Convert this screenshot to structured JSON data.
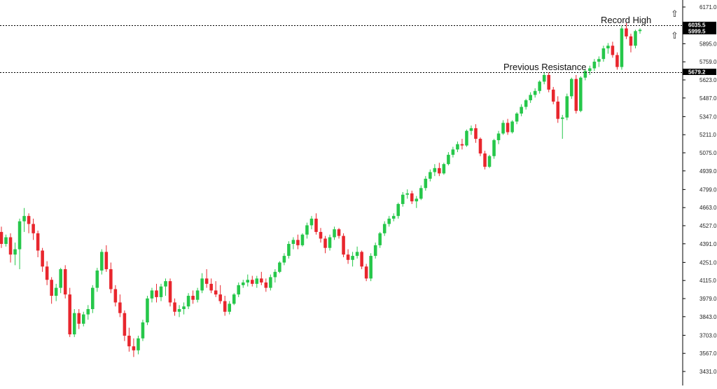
{
  "colors": {
    "bull": "#26c74a",
    "bear": "#e8262d",
    "wick_bull": "#26c74a",
    "wick_bear": "#e8262d",
    "grid_line": "#000000",
    "axis_line": "#000000",
    "tag_bg": "#000000"
  },
  "annotations": {
    "record_high": "Record High",
    "previous_resistance": "Previous Resistance",
    "arrow_up_1": "⇧",
    "arrow_up_2": "⇧"
  },
  "price_tags": {
    "record_high_level": "6035.5",
    "current_price": "5999.5",
    "resistance_level": "5679.2"
  },
  "chart_data": {
    "type": "candlestick",
    "title": "",
    "xlabel": "",
    "ylabel": "",
    "ylim": [
      3431.0,
      6171.0
    ],
    "y_ticks": [
      "6171.0",
      "6035.5",
      "5895.0",
      "5759.0",
      "5623.0",
      "5487.0",
      "5347.0",
      "5211.0",
      "5075.0",
      "4939.0",
      "4799.0",
      "4663.0",
      "4527.0",
      "4391.0",
      "4251.0",
      "4115.0",
      "3979.0",
      "3843.0",
      "3703.0",
      "3567.0",
      "3431.0"
    ],
    "y_tick_values": [
      6171.0,
      6035.5,
      5895.0,
      5759.0,
      5623.0,
      5487.0,
      5347.0,
      5211.0,
      5075.0,
      4939.0,
      4799.0,
      4663.0,
      4527.0,
      4391.0,
      4251.0,
      4115.0,
      3979.0,
      3843.0,
      3703.0,
      3567.0,
      3431.0
    ],
    "horizontal_lines": [
      {
        "name": "Record High",
        "value": 6035.5,
        "style": "dotted"
      },
      {
        "name": "Previous Resistance",
        "value": 5679.2,
        "style": "dotted"
      }
    ],
    "grid": false,
    "candles": [
      [
        4480,
        4520,
        4360,
        4390
      ],
      [
        4390,
        4460,
        4370,
        4440
      ],
      [
        4440,
        4470,
        4250,
        4310
      ],
      [
        4310,
        4400,
        4230,
        4350
      ],
      [
        4350,
        4580,
        4200,
        4560
      ],
      [
        4560,
        4660,
        4480,
        4600
      ],
      [
        4600,
        4620,
        4470,
        4540
      ],
      [
        4540,
        4580,
        4420,
        4470
      ],
      [
        4470,
        4490,
        4290,
        4340
      ],
      [
        4340,
        4360,
        4180,
        4220
      ],
      [
        4220,
        4260,
        4080,
        4120
      ],
      [
        4120,
        4140,
        3940,
        4000
      ],
      [
        4000,
        4090,
        3960,
        4060
      ],
      [
        4060,
        4210,
        4020,
        4200
      ],
      [
        4200,
        4230,
        3980,
        4010
      ],
      [
        4010,
        4060,
        3690,
        3710
      ],
      [
        3710,
        3900,
        3690,
        3870
      ],
      [
        3870,
        3900,
        3750,
        3790
      ],
      [
        3790,
        3880,
        3770,
        3860
      ],
      [
        3860,
        3930,
        3820,
        3900
      ],
      [
        3900,
        4080,
        3870,
        4060
      ],
      [
        4060,
        4210,
        4030,
        4190
      ],
      [
        4190,
        4350,
        4160,
        4330
      ],
      [
        4330,
        4380,
        4180,
        4200
      ],
      [
        4200,
        4250,
        4020,
        4050
      ],
      [
        4050,
        4080,
        3920,
        3950
      ],
      [
        3950,
        4010,
        3840,
        3870
      ],
      [
        3870,
        3890,
        3660,
        3700
      ],
      [
        3700,
        3760,
        3580,
        3620
      ],
      [
        3620,
        3680,
        3540,
        3590
      ],
      [
        3590,
        3700,
        3560,
        3680
      ],
      [
        3680,
        3820,
        3660,
        3800
      ],
      [
        3800,
        4000,
        3780,
        3980
      ],
      [
        3980,
        4060,
        3950,
        4040
      ],
      [
        4040,
        4090,
        3950,
        3990
      ],
      [
        3990,
        4090,
        3960,
        4070
      ],
      [
        4070,
        4130,
        4000,
        4110
      ],
      [
        4110,
        4130,
        3920,
        3950
      ],
      [
        3950,
        3980,
        3850,
        3880
      ],
      [
        3880,
        3930,
        3840,
        3900
      ],
      [
        3900,
        3950,
        3860,
        3920
      ],
      [
        3920,
        4020,
        3900,
        4000
      ],
      [
        4000,
        4040,
        3940,
        3970
      ],
      [
        3970,
        4060,
        3950,
        4040
      ],
      [
        4040,
        4170,
        4020,
        4130
      ],
      [
        4130,
        4200,
        4060,
        4090
      ],
      [
        4090,
        4130,
        4020,
        4040
      ],
      [
        4040,
        4110,
        3990,
        4010
      ],
      [
        4010,
        4080,
        3940,
        3960
      ],
      [
        3960,
        4000,
        3850,
        3880
      ],
      [
        3880,
        3960,
        3860,
        3940
      ],
      [
        3940,
        4020,
        3930,
        4010
      ],
      [
        4010,
        4100,
        3990,
        4080
      ],
      [
        4080,
        4120,
        4060,
        4100
      ],
      [
        4100,
        4160,
        4070,
        4120
      ],
      [
        4120,
        4150,
        4070,
        4090
      ],
      [
        4090,
        4150,
        4060,
        4130
      ],
      [
        4130,
        4180,
        4080,
        4100
      ],
      [
        4100,
        4130,
        4030,
        4060
      ],
      [
        4060,
        4160,
        4040,
        4140
      ],
      [
        4140,
        4200,
        4100,
        4180
      ],
      [
        4180,
        4260,
        4170,
        4250
      ],
      [
        4250,
        4320,
        4230,
        4300
      ],
      [
        4300,
        4410,
        4280,
        4390
      ],
      [
        4390,
        4440,
        4350,
        4420
      ],
      [
        4420,
        4460,
        4350,
        4380
      ],
      [
        4380,
        4470,
        4370,
        4460
      ],
      [
        4460,
        4550,
        4430,
        4530
      ],
      [
        4530,
        4600,
        4500,
        4580
      ],
      [
        4580,
        4620,
        4460,
        4480
      ],
      [
        4480,
        4510,
        4400,
        4430
      ],
      [
        4430,
        4450,
        4320,
        4360
      ],
      [
        4360,
        4460,
        4340,
        4440
      ],
      [
        4440,
        4520,
        4420,
        4500
      ],
      [
        4500,
        4510,
        4430,
        4450
      ],
      [
        4450,
        4470,
        4290,
        4310
      ],
      [
        4310,
        4350,
        4240,
        4270
      ],
      [
        4270,
        4330,
        4220,
        4300
      ],
      [
        4300,
        4370,
        4280,
        4330
      ],
      [
        4330,
        4340,
        4200,
        4220
      ],
      [
        4220,
        4240,
        4110,
        4130
      ],
      [
        4130,
        4320,
        4110,
        4300
      ],
      [
        4300,
        4400,
        4280,
        4380
      ],
      [
        4380,
        4480,
        4360,
        4470
      ],
      [
        4470,
        4560,
        4450,
        4540
      ],
      [
        4540,
        4600,
        4520,
        4580
      ],
      [
        4580,
        4620,
        4560,
        4600
      ],
      [
        4600,
        4700,
        4580,
        4690
      ],
      [
        4690,
        4780,
        4670,
        4760
      ],
      [
        4760,
        4800,
        4730,
        4770
      ],
      [
        4770,
        4790,
        4690,
        4710
      ],
      [
        4710,
        4750,
        4660,
        4730
      ],
      [
        4730,
        4830,
        4720,
        4810
      ],
      [
        4810,
        4900,
        4790,
        4880
      ],
      [
        4880,
        4950,
        4860,
        4930
      ],
      [
        4930,
        4990,
        4900,
        4960
      ],
      [
        4960,
        5000,
        4900,
        4920
      ],
      [
        4920,
        5000,
        4910,
        4990
      ],
      [
        4990,
        5080,
        4980,
        5060
      ],
      [
        5060,
        5120,
        5040,
        5100
      ],
      [
        5100,
        5160,
        5080,
        5140
      ],
      [
        5140,
        5180,
        5100,
        5130
      ],
      [
        5130,
        5250,
        5120,
        5240
      ],
      [
        5240,
        5280,
        5210,
        5260
      ],
      [
        5260,
        5290,
        5150,
        5180
      ],
      [
        5180,
        5190,
        5050,
        5070
      ],
      [
        5070,
        5090,
        4950,
        4970
      ],
      [
        4970,
        5060,
        4960,
        5050
      ],
      [
        5050,
        5180,
        5030,
        5170
      ],
      [
        5170,
        5240,
        5140,
        5220
      ],
      [
        5220,
        5320,
        5210,
        5300
      ],
      [
        5300,
        5330,
        5210,
        5230
      ],
      [
        5230,
        5320,
        5220,
        5310
      ],
      [
        5310,
        5380,
        5290,
        5370
      ],
      [
        5370,
        5440,
        5350,
        5420
      ],
      [
        5420,
        5480,
        5400,
        5470
      ],
      [
        5470,
        5530,
        5450,
        5510
      ],
      [
        5510,
        5560,
        5490,
        5540
      ],
      [
        5540,
        5620,
        5520,
        5610
      ],
      [
        5610,
        5680,
        5590,
        5660
      ],
      [
        5660,
        5680,
        5530,
        5550
      ],
      [
        5550,
        5570,
        5440,
        5460
      ],
      [
        5460,
        5500,
        5300,
        5330
      ],
      [
        5330,
        5360,
        5180,
        5340
      ],
      [
        5340,
        5520,
        5320,
        5500
      ],
      [
        5500,
        5640,
        5480,
        5630
      ],
      [
        5630,
        5660,
        5370,
        5390
      ],
      [
        5390,
        5650,
        5380,
        5640
      ],
      [
        5640,
        5700,
        5620,
        5690
      ],
      [
        5690,
        5730,
        5660,
        5710
      ],
      [
        5710,
        5780,
        5690,
        5760
      ],
      [
        5760,
        5800,
        5720,
        5780
      ],
      [
        5780,
        5880,
        5760,
        5860
      ],
      [
        5860,
        5900,
        5820,
        5880
      ],
      [
        5880,
        5910,
        5790,
        5810
      ],
      [
        5810,
        5830,
        5700,
        5720
      ],
      [
        5720,
        6030,
        5700,
        6010
      ],
      [
        6010,
        6050,
        5930,
        5950
      ],
      [
        5950,
        5970,
        5830,
        5880
      ],
      [
        5880,
        6000,
        5860,
        5990
      ],
      [
        5990,
        6010,
        5970,
        6000
      ]
    ]
  }
}
